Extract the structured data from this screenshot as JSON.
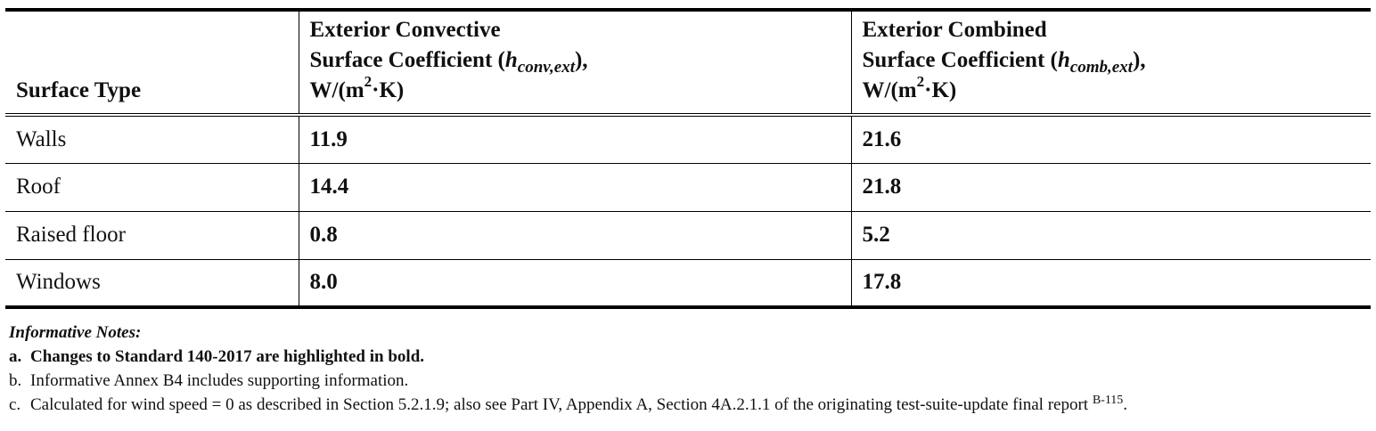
{
  "table": {
    "headers": {
      "col1": "Surface Type",
      "col2": {
        "line1": "Exterior Convective",
        "line2_prefix": "Surface Coefficient (",
        "symbol": "h",
        "subscript": "conv,ext",
        "line2_suffix": "),",
        "line3_prefix": "W/(m",
        "line3_sup": "2",
        "line3_suffix": "·K)"
      },
      "col3": {
        "line1": "Exterior Combined",
        "line2_prefix": "Surface Coefficient (",
        "symbol": "h",
        "subscript": "comb,ext",
        "line2_suffix": "),",
        "line3_prefix": "W/(m",
        "line3_sup": "2",
        "line3_suffix": "·K)"
      }
    },
    "rows": [
      {
        "surface": "Walls",
        "convective": "11.9",
        "combined": "21.6"
      },
      {
        "surface": "Roof",
        "convective": "14.4",
        "combined": "21.8"
      },
      {
        "surface": "Raised floor",
        "convective": "0.8",
        "combined": "5.2"
      },
      {
        "surface": "Windows",
        "convective": "8.0",
        "combined": "17.8"
      }
    ]
  },
  "notes": {
    "title": "Informative Notes:",
    "items": [
      {
        "label": "a.",
        "text": "Changes to Standard 140-2017 are highlighted in bold."
      },
      {
        "label": "b.",
        "text": "Informative Annex B4 includes supporting information."
      },
      {
        "label": "c.",
        "text": "Calculated for wind speed = 0 as described in Section 5.2.1.9; also see Part IV, Appendix A, Section 4A.2.1.1 of the originating test-suite-update final report ",
        "ref": "B-115",
        "end": "."
      }
    ]
  }
}
